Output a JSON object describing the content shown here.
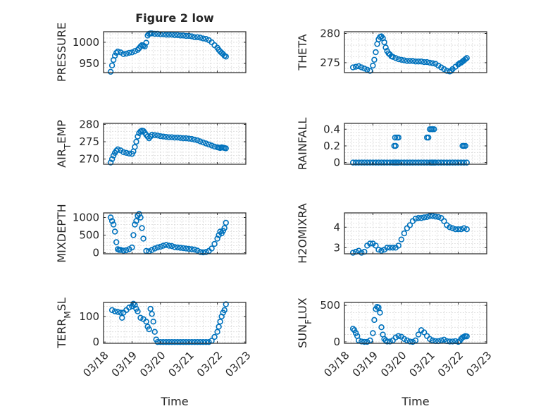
{
  "figure_title": "Figure 2 low",
  "x_tick_labels": [
    "03/18",
    "03/19",
    "03/20",
    "03/21",
    "03/22",
    "03/23"
  ],
  "xlabel": "Time",
  "colors": {
    "marker": "#0072bd",
    "axes": "#262626",
    "grid": "#d9d9d9"
  },
  "chart_data": [
    {
      "id": "pressure",
      "type": "scatter",
      "title": "Figure 2 low",
      "ylabel": "PRESSURE",
      "ylabel_sub": null,
      "xlim": [
        0,
        5
      ],
      "ylim": [
        928,
        1025
      ],
      "yticks": [
        950,
        1000
      ],
      "x": [
        0.25,
        0.3,
        0.35,
        0.4,
        0.45,
        0.5,
        0.6,
        0.7,
        0.8,
        0.9,
        1.0,
        1.1,
        1.2,
        1.25,
        1.3,
        1.35,
        1.4,
        1.45,
        1.5,
        1.55,
        1.6,
        1.65,
        1.7,
        1.8,
        1.9,
        2.0,
        2.1,
        2.2,
        2.3,
        2.4,
        2.5,
        2.6,
        2.7,
        2.8,
        2.9,
        3.0,
        3.1,
        3.2,
        3.3,
        3.4,
        3.5,
        3.6,
        3.7,
        3.8,
        3.9,
        4.0,
        4.05,
        4.1,
        4.15,
        4.2,
        4.25,
        4.3
      ],
      "y": [
        930,
        945,
        958,
        968,
        975,
        978,
        976,
        972,
        973,
        975,
        976,
        979,
        982,
        986,
        990,
        993,
        992,
        990,
        999,
        1016,
        1020,
        1021,
        1021,
        1020,
        1020,
        1019,
        1019,
        1018,
        1018,
        1018,
        1017,
        1017,
        1016,
        1016,
        1015,
        1015,
        1014,
        1012,
        1012,
        1011,
        1009,
        1008,
        1005,
        1000,
        993,
        987,
        982,
        978,
        975,
        972,
        968,
        966
      ]
    },
    {
      "id": "theta",
      "type": "scatter",
      "title": "",
      "ylabel": "THETA",
      "ylabel_sub": null,
      "xlim": [
        0,
        5
      ],
      "ylim": [
        273.3,
        280.3
      ],
      "yticks": [
        275,
        280
      ],
      "x": [
        0.3,
        0.4,
        0.5,
        0.6,
        0.7,
        0.8,
        0.9,
        1.0,
        1.05,
        1.1,
        1.15,
        1.2,
        1.25,
        1.3,
        1.35,
        1.4,
        1.45,
        1.5,
        1.55,
        1.6,
        1.65,
        1.7,
        1.8,
        1.9,
        2.0,
        2.1,
        2.2,
        2.3,
        2.4,
        2.5,
        2.6,
        2.7,
        2.8,
        2.9,
        3.0,
        3.1,
        3.2,
        3.3,
        3.4,
        3.5,
        3.6,
        3.7,
        3.75,
        3.8,
        3.9,
        4.0,
        4.05,
        4.1,
        4.15,
        4.2,
        4.25,
        4.3
      ],
      "y": [
        274.2,
        274.3,
        274.4,
        274.2,
        274.0,
        273.8,
        273.6,
        274.5,
        275.5,
        276.8,
        278.2,
        279.0,
        279.4,
        279.5,
        279.2,
        278.5,
        277.6,
        277.0,
        276.6,
        276.4,
        276.1,
        276.0,
        275.8,
        275.6,
        275.5,
        275.4,
        275.3,
        275.3,
        275.3,
        275.2,
        275.2,
        275.2,
        275.1,
        275.1,
        275.0,
        274.9,
        274.8,
        274.5,
        274.2,
        273.9,
        273.6,
        273.5,
        273.6,
        273.9,
        274.3,
        274.7,
        274.9,
        275.0,
        275.2,
        275.4,
        275.6,
        275.8
      ]
    },
    {
      "id": "air_temp",
      "type": "scatter",
      "title": "",
      "ylabel": "AIR",
      "ylabel_sub": "T",
      "ylabel_suffix": "EMP",
      "xlim": [
        0,
        5
      ],
      "ylim": [
        268.5,
        280.3
      ],
      "yticks": [
        270,
        275,
        280
      ],
      "x": [
        0.25,
        0.3,
        0.35,
        0.4,
        0.45,
        0.5,
        0.6,
        0.7,
        0.8,
        0.9,
        1.0,
        1.05,
        1.1,
        1.15,
        1.2,
        1.25,
        1.3,
        1.35,
        1.4,
        1.45,
        1.5,
        1.55,
        1.6,
        1.65,
        1.7,
        1.8,
        1.9,
        2.0,
        2.1,
        2.2,
        2.3,
        2.4,
        2.5,
        2.6,
        2.7,
        2.8,
        2.9,
        3.0,
        3.1,
        3.2,
        3.3,
        3.4,
        3.5,
        3.6,
        3.7,
        3.8,
        3.9,
        4.0,
        4.05,
        4.1,
        4.15,
        4.2,
        4.25,
        4.3
      ],
      "y": [
        269.0,
        270.0,
        271.0,
        271.8,
        272.4,
        272.8,
        272.5,
        272.0,
        271.8,
        271.6,
        271.5,
        272.2,
        273.5,
        275.0,
        276.5,
        277.5,
        278.0,
        278.2,
        278.1,
        277.6,
        277.0,
        276.5,
        276.0,
        276.5,
        277.0,
        276.9,
        276.8,
        276.6,
        276.5,
        276.4,
        276.3,
        276.3,
        276.2,
        276.2,
        276.1,
        276.0,
        276.0,
        275.9,
        275.8,
        275.6,
        275.4,
        275.1,
        274.8,
        274.5,
        274.2,
        273.9,
        273.6,
        273.4,
        273.3,
        273.2,
        273.4,
        273.3,
        273.2,
        273.1
      ]
    },
    {
      "id": "rainfall",
      "type": "scatter",
      "title": "",
      "ylabel": "RAINFALL",
      "ylabel_sub": null,
      "xlim": [
        0,
        5
      ],
      "ylim": [
        -0.02,
        0.47
      ],
      "yticks": [
        0,
        0.2,
        0.4
      ],
      "x": [
        0.3,
        0.4,
        0.5,
        0.6,
        0.7,
        0.8,
        0.9,
        1.0,
        1.1,
        1.2,
        1.3,
        1.4,
        1.5,
        1.6,
        1.7,
        1.75,
        1.8,
        1.85,
        1.9,
        2.0,
        2.1,
        2.2,
        2.3,
        2.4,
        2.5,
        2.6,
        2.7,
        2.8,
        2.9,
        3.0,
        3.05,
        3.1,
        3.15,
        3.2,
        3.3,
        3.4,
        3.5,
        3.6,
        3.7,
        3.8,
        3.9,
        4.0,
        4.1,
        4.2,
        4.3,
        1.75,
        1.78,
        1.8,
        1.85,
        1.9,
        2.9,
        2.95,
        3.0,
        3.05,
        3.1,
        3.15,
        4.15,
        4.2,
        4.25
      ],
      "y": [
        0,
        0,
        0,
        0,
        0,
        0,
        0,
        0,
        0,
        0,
        0,
        0,
        0,
        0,
        0,
        0,
        0,
        0,
        0,
        0,
        0,
        0,
        0,
        0,
        0,
        0,
        0,
        0,
        0,
        0,
        0,
        0,
        0,
        0,
        0,
        0,
        0,
        0,
        0,
        0,
        0,
        0,
        0,
        0,
        0,
        0.2,
        0.3,
        0.2,
        0.3,
        0.3,
        0.3,
        0.3,
        0.4,
        0.4,
        0.4,
        0.4,
        0.2,
        0.2,
        0.2
      ]
    },
    {
      "id": "mixdepth",
      "type": "scatter",
      "title": "",
      "ylabel": "MIXDEPTH",
      "ylabel_sub": null,
      "xlim": [
        0,
        5
      ],
      "ylim": [
        -30,
        1130
      ],
      "yticks": [
        0,
        500,
        1000
      ],
      "x": [
        0.25,
        0.3,
        0.35,
        0.4,
        0.45,
        0.5,
        0.55,
        0.6,
        0.7,
        0.8,
        0.9,
        1.0,
        1.05,
        1.1,
        1.15,
        1.2,
        1.25,
        1.3,
        1.35,
        1.4,
        1.5,
        1.6,
        1.7,
        1.8,
        1.9,
        2.0,
        2.1,
        2.2,
        2.3,
        2.4,
        2.5,
        2.6,
        2.7,
        2.8,
        2.9,
        3.0,
        3.1,
        3.2,
        3.3,
        3.4,
        3.5,
        3.6,
        3.7,
        3.8,
        3.9,
        4.0,
        4.05,
        4.1,
        4.15,
        4.2,
        4.25,
        4.3
      ],
      "y": [
        1000,
        900,
        800,
        600,
        300,
        100,
        80,
        80,
        60,
        70,
        100,
        150,
        500,
        800,
        900,
        1050,
        1100,
        1000,
        700,
        400,
        50,
        40,
        80,
        120,
        150,
        170,
        200,
        220,
        200,
        190,
        160,
        150,
        140,
        130,
        120,
        110,
        100,
        90,
        60,
        20,
        10,
        20,
        50,
        120,
        250,
        400,
        500,
        600,
        550,
        620,
        700,
        850
      ]
    },
    {
      "id": "h2omixra",
      "type": "scatter",
      "title": "",
      "ylabel": "H2OMIXRA",
      "ylabel_sub": null,
      "xlim": [
        0,
        5
      ],
      "ylim": [
        2.7,
        4.7
      ],
      "yticks": [
        3,
        4
      ],
      "x": [
        0.3,
        0.4,
        0.5,
        0.6,
        0.7,
        0.8,
        0.9,
        1.0,
        1.1,
        1.2,
        1.3,
        1.4,
        1.5,
        1.6,
        1.7,
        1.8,
        1.9,
        2.0,
        2.1,
        2.2,
        2.3,
        2.4,
        2.5,
        2.6,
        2.7,
        2.8,
        2.9,
        3.0,
        3.1,
        3.2,
        3.3,
        3.4,
        3.5,
        3.6,
        3.7,
        3.8,
        3.9,
        4.0,
        4.1,
        4.2,
        4.3
      ],
      "y": [
        2.75,
        2.8,
        2.85,
        2.75,
        2.8,
        3.1,
        3.2,
        3.2,
        3.1,
        2.9,
        2.85,
        2.9,
        3.0,
        3.0,
        3.0,
        3.0,
        3.1,
        3.4,
        3.7,
        3.95,
        4.1,
        4.3,
        4.42,
        4.45,
        4.45,
        4.48,
        4.5,
        4.55,
        4.55,
        4.52,
        4.5,
        4.45,
        4.3,
        4.1,
        4.0,
        3.95,
        3.9,
        3.9,
        3.9,
        3.95,
        3.9
      ]
    },
    {
      "id": "terr_msl",
      "type": "scatter",
      "title": "",
      "ylabel": "TERR",
      "ylabel_sub": "M",
      "ylabel_suffix": "SL",
      "xlim": [
        0,
        5
      ],
      "ylim": [
        -5,
        155
      ],
      "yticks": [
        0,
        100
      ],
      "x": [
        0.3,
        0.4,
        0.5,
        0.6,
        0.65,
        0.7,
        0.8,
        0.9,
        1.0,
        1.05,
        1.1,
        1.15,
        1.2,
        1.3,
        1.4,
        1.5,
        1.55,
        1.6,
        1.65,
        1.7,
        1.75,
        1.8,
        1.85,
        1.9,
        2.0,
        2.1,
        2.2,
        2.3,
        2.4,
        2.5,
        2.6,
        2.7,
        2.8,
        2.9,
        3.0,
        3.1,
        3.2,
        3.3,
        3.4,
        3.5,
        3.6,
        3.7,
        3.8,
        3.9,
        4.0,
        4.05,
        4.1,
        4.15,
        4.2,
        4.25,
        4.3
      ],
      "y": [
        125,
        120,
        118,
        115,
        95,
        115,
        125,
        135,
        140,
        150,
        145,
        130,
        120,
        95,
        90,
        80,
        60,
        50,
        130,
        110,
        80,
        40,
        10,
        0,
        0,
        0,
        0,
        0,
        0,
        0,
        0,
        0,
        0,
        0,
        0,
        0,
        0,
        0,
        0,
        0,
        0,
        0,
        5,
        20,
        40,
        60,
        80,
        100,
        115,
        125,
        148
      ]
    },
    {
      "id": "sun_flux",
      "type": "scatter",
      "title": "",
      "ylabel": "SUN",
      "ylabel_sub": "F",
      "ylabel_suffix": "LUX",
      "xlim": [
        0,
        5
      ],
      "ylim": [
        -20,
        540
      ],
      "yticks": [
        0,
        500
      ],
      "x": [
        0.3,
        0.35,
        0.4,
        0.45,
        0.5,
        0.6,
        0.7,
        0.8,
        0.9,
        1.0,
        1.05,
        1.1,
        1.15,
        1.2,
        1.25,
        1.3,
        1.35,
        1.4,
        1.45,
        1.5,
        1.6,
        1.7,
        1.8,
        1.9,
        2.0,
        2.1,
        2.2,
        2.3,
        2.4,
        2.5,
        2.6,
        2.7,
        2.8,
        2.9,
        3.0,
        3.1,
        3.2,
        3.3,
        3.4,
        3.5,
        3.6,
        3.7,
        3.8,
        3.9,
        4.0,
        4.05,
        4.1,
        4.15,
        4.2,
        4.25,
        4.3
      ],
      "y": [
        180,
        160,
        120,
        80,
        20,
        5,
        0,
        0,
        20,
        120,
        300,
        450,
        480,
        470,
        400,
        200,
        100,
        40,
        20,
        5,
        5,
        20,
        60,
        80,
        70,
        40,
        20,
        5,
        0,
        20,
        100,
        160,
        130,
        80,
        40,
        20,
        10,
        10,
        20,
        30,
        10,
        5,
        5,
        10,
        0,
        10,
        40,
        60,
        70,
        80,
        75
      ]
    }
  ]
}
